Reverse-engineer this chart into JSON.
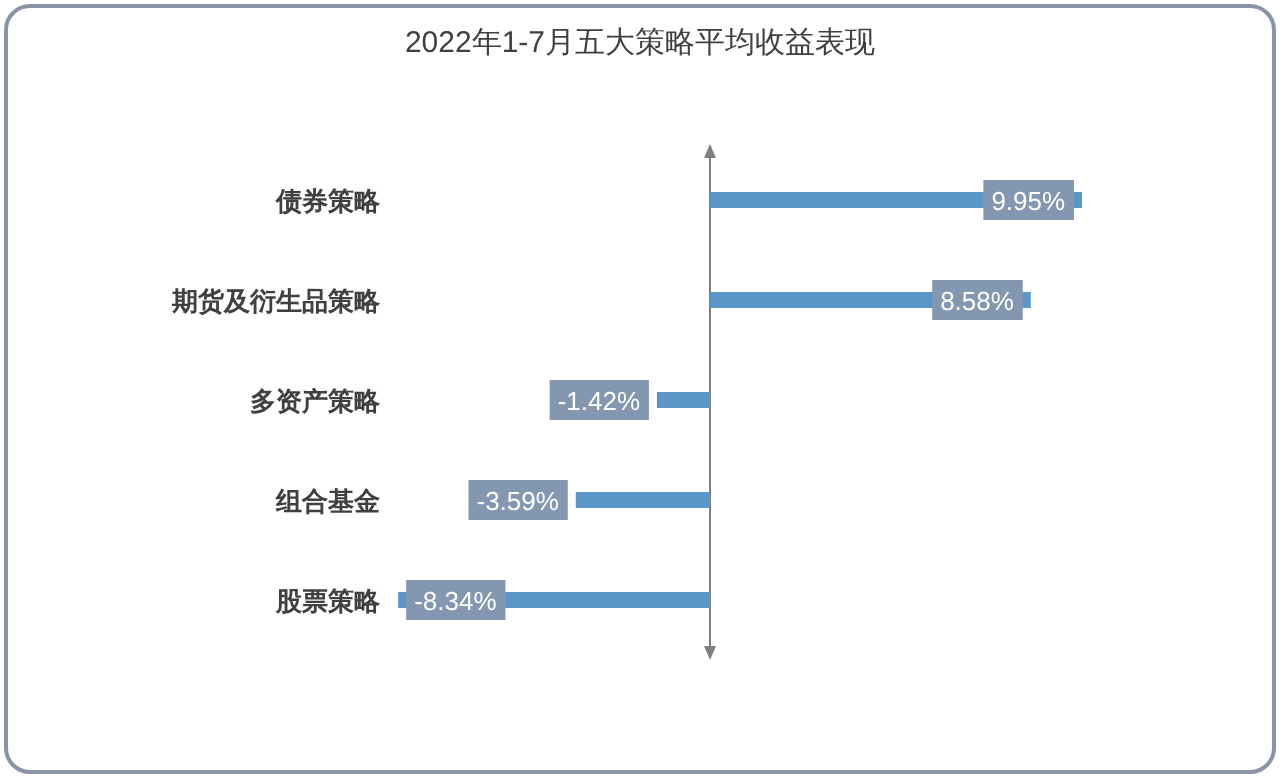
{
  "chart_data": {
    "type": "bar",
    "orientation": "horizontal",
    "title": "2022年1-7月五大策略平均收益表现",
    "categories": [
      "债券策略",
      "期货及衍生品策略",
      "多资产策略",
      "组合基金",
      "股票策略"
    ],
    "values": [
      9.95,
      8.58,
      -1.42,
      -3.59,
      -8.34
    ],
    "value_labels": [
      "9.95%",
      "8.58%",
      "-1.42%",
      "-3.59%",
      "-8.34%"
    ],
    "color": "#5b96c8"
  }
}
